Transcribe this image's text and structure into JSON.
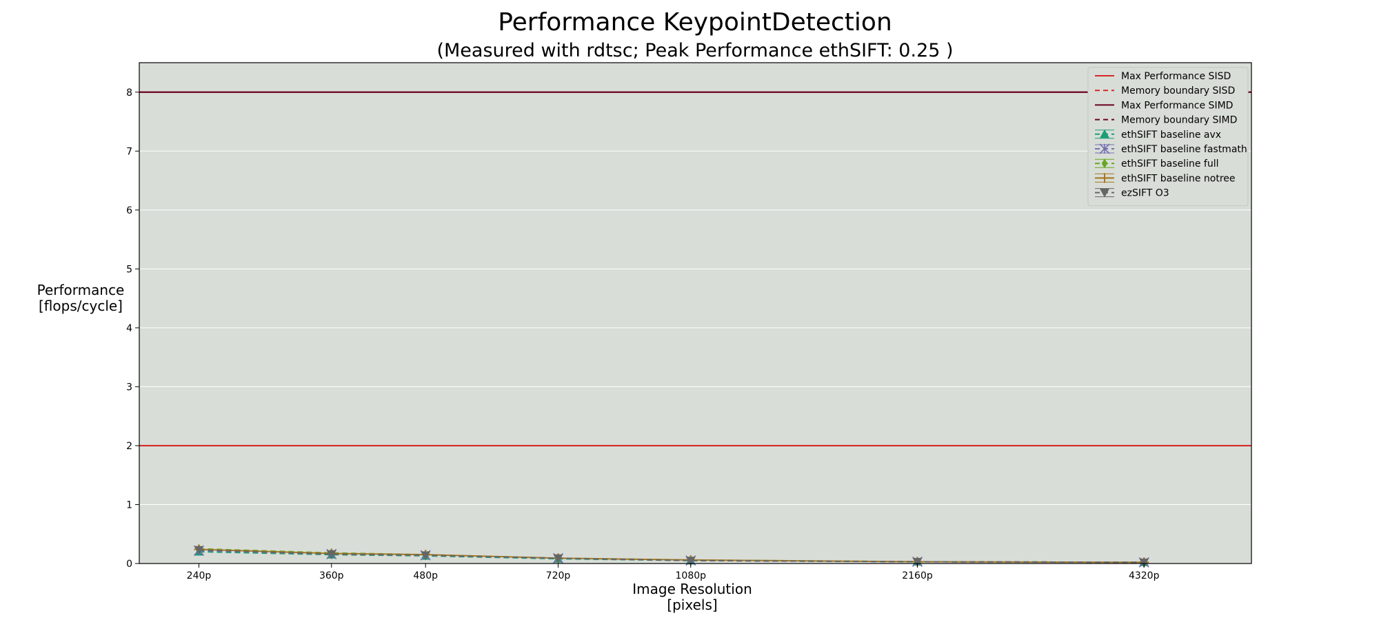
{
  "chart_data": {
    "type": "line",
    "title": "Performance KeypointDetection",
    "subtitle": "(Measured with rdtsc; Peak Performance ethSIFT: 0.25 )",
    "xlabel": "Image Resolution\n[pixels]",
    "ylabel": "Performance\n[flops/cycle]",
    "x_categories": [
      "240p",
      "360p",
      "480p",
      "720p",
      "1080p",
      "2160p",
      "4320p"
    ],
    "x_values": [
      240,
      360,
      480,
      720,
      1080,
      2160,
      4320
    ],
    "x_scale": "log",
    "xlim": [
      200,
      6000
    ],
    "ylim": [
      0,
      8.5
    ],
    "yticks": [
      0,
      1,
      2,
      3,
      4,
      5,
      6,
      7,
      8
    ],
    "grid": true,
    "legend_position": "top-right",
    "colors": {
      "plot_background": "#d8ddd7",
      "grid": "#ffffff"
    },
    "hlines": [
      {
        "name": "Max Performance SISD",
        "y": 2,
        "color": "#d62728",
        "dash": "solid"
      },
      {
        "name": "Memory boundary SISD",
        "y": null,
        "color": "#d62728",
        "dash": "dashed"
      },
      {
        "name": "Max Performance SIMD",
        "y": 8,
        "color": "#6b0020",
        "dash": "solid"
      },
      {
        "name": "Memory boundary SIMD",
        "y": null,
        "color": "#6b0020",
        "dash": "dashed"
      }
    ],
    "series": [
      {
        "name": "ethSIFT baseline avx",
        "color": "#1b9e77",
        "marker": "triangle-up",
        "dash": "dashed",
        "values": [
          0.2,
          0.15,
          0.13,
          0.08,
          0.05,
          0.03,
          0.02
        ]
      },
      {
        "name": "ethSIFT baseline fastmath",
        "color": "#7570b3",
        "marker": "x",
        "dash": "dashed",
        "values": [
          0.22,
          0.16,
          0.14,
          0.09,
          0.05,
          0.03,
          0.02
        ]
      },
      {
        "name": "ethSIFT baseline full",
        "color": "#66a61e",
        "marker": "diamond",
        "dash": "dashed",
        "values": [
          0.25,
          0.18,
          0.15,
          0.09,
          0.06,
          0.03,
          0.02
        ]
      },
      {
        "name": "ethSIFT baseline notree",
        "color": "#a6761d",
        "marker": "plus",
        "dash": "solid",
        "values": [
          0.24,
          0.17,
          0.15,
          0.09,
          0.06,
          0.03,
          0.02
        ]
      },
      {
        "name": "ezSIFT O3",
        "color": "#666666",
        "marker": "triangle-down",
        "dash": "dashed",
        "values": [
          0.23,
          0.16,
          0.14,
          0.09,
          0.05,
          0.03,
          0.02
        ]
      }
    ]
  }
}
